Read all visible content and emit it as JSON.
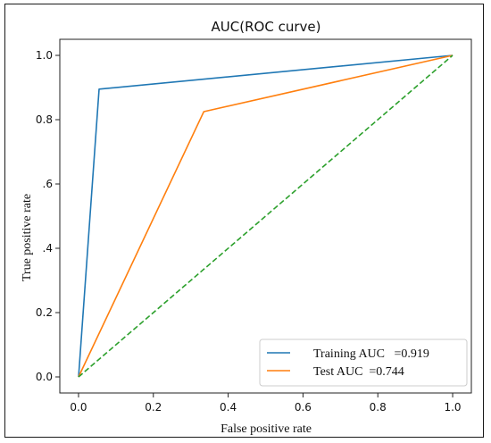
{
  "chart_data": {
    "type": "line",
    "title": "AUC(ROC curve)",
    "xlabel": "False positive rate",
    "ylabel": "True positive rate",
    "xlim": [
      -0.05,
      1.05
    ],
    "ylim": [
      -0.05,
      1.05
    ],
    "xticks": [
      0.0,
      0.2,
      0.4,
      0.6,
      0.8,
      1.0
    ],
    "yticks": [
      0.0,
      0.2,
      0.4,
      0.6,
      0.8,
      1.0
    ],
    "xtick_labels": [
      "0.0",
      "0.2",
      "0.4",
      "0.6",
      "0.8",
      "1.0"
    ],
    "ytick_labels": [
      "0.0",
      "0.2",
      ".4",
      ".6",
      "0.8",
      "1.0"
    ],
    "grid": false,
    "legend_position": "bottom-right",
    "series": [
      {
        "name": "Training AUC   =0.919",
        "color": "#1f77b4",
        "style": "solid",
        "x": [
          0.0,
          0.055,
          1.0
        ],
        "y": [
          0.0,
          0.895,
          1.0
        ]
      },
      {
        "name": "Test AUC  =0.744",
        "color": "#ff7f0e",
        "style": "solid",
        "x": [
          0.0,
          0.335,
          1.0
        ],
        "y": [
          0.0,
          0.825,
          1.0
        ]
      },
      {
        "color": "#2ca02c",
        "style": "dashed",
        "x": [
          0.0,
          1.0
        ],
        "y": [
          0.0,
          1.0
        ]
      }
    ]
  }
}
